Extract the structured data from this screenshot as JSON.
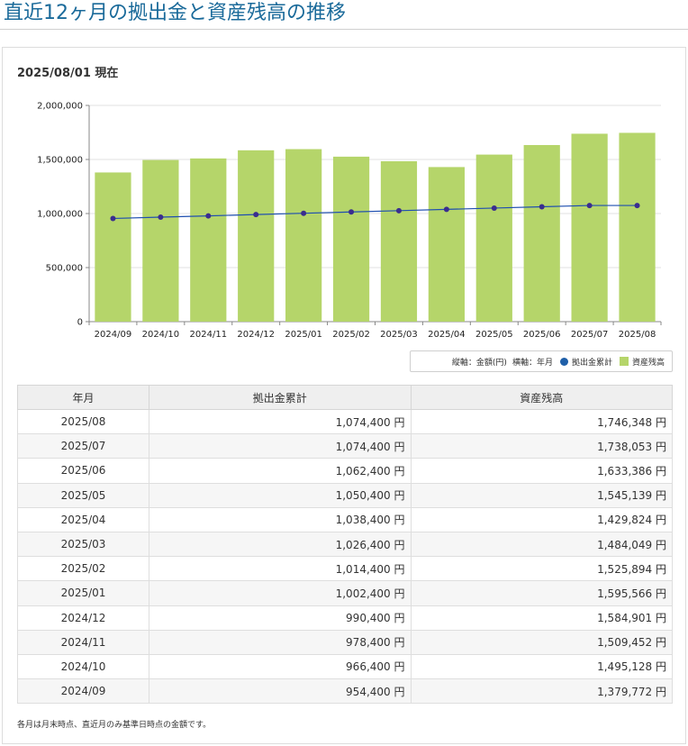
{
  "page": {
    "title": "直近12ヶ月の拠出金と資産残高の推移",
    "as_of": "2025/08/01 現在",
    "footnote": "各月は月末時点、直近月のみ基準日時点の金額です。"
  },
  "legend": {
    "axis_note_y": "縦軸：金額(円)",
    "axis_note_x": "横軸：年月",
    "contrib_label": "拠出金累計",
    "assets_label": "資産残高"
  },
  "colors": {
    "bar": "#b5d56a",
    "line": "#1f4fb0",
    "marker": "#3a2d8f",
    "title": "#1a6a9a"
  },
  "chart_data": {
    "type": "bar",
    "categories": [
      "2024/09",
      "2024/10",
      "2024/11",
      "2024/12",
      "2025/01",
      "2025/02",
      "2025/03",
      "2025/04",
      "2025/05",
      "2025/06",
      "2025/07",
      "2025/08"
    ],
    "series": [
      {
        "name": "資産残高",
        "type": "bar",
        "values": [
          1379772,
          1495128,
          1509452,
          1584901,
          1595566,
          1525894,
          1484049,
          1429824,
          1545139,
          1633386,
          1738053,
          1746348
        ]
      },
      {
        "name": "拠出金累計",
        "type": "line",
        "values": [
          954400,
          966400,
          978400,
          990400,
          1002400,
          1014400,
          1026400,
          1038400,
          1050400,
          1062400,
          1074400,
          1074400
        ]
      }
    ],
    "ylim": [
      0,
      2000000
    ],
    "yticks": [
      0,
      500000,
      1000000,
      1500000,
      2000000
    ],
    "ytick_labels": [
      "0",
      "500,000",
      "1,000,000",
      "1,500,000",
      "2,000,000"
    ],
    "grid": true
  },
  "table": {
    "headers": [
      "年月",
      "拠出金累計",
      "資産残高"
    ],
    "rows": [
      {
        "month": "2025/08",
        "contrib": "1,074,400 円",
        "assets": "1,746,348 円"
      },
      {
        "month": "2025/07",
        "contrib": "1,074,400 円",
        "assets": "1,738,053 円"
      },
      {
        "month": "2025/06",
        "contrib": "1,062,400 円",
        "assets": "1,633,386 円"
      },
      {
        "month": "2025/05",
        "contrib": "1,050,400 円",
        "assets": "1,545,139 円"
      },
      {
        "month": "2025/04",
        "contrib": "1,038,400 円",
        "assets": "1,429,824 円"
      },
      {
        "month": "2025/03",
        "contrib": "1,026,400 円",
        "assets": "1,484,049 円"
      },
      {
        "month": "2025/02",
        "contrib": "1,014,400 円",
        "assets": "1,525,894 円"
      },
      {
        "month": "2025/01",
        "contrib": "1,002,400 円",
        "assets": "1,595,566 円"
      },
      {
        "month": "2024/12",
        "contrib": "990,400 円",
        "assets": "1,584,901 円"
      },
      {
        "month": "2024/11",
        "contrib": "978,400 円",
        "assets": "1,509,452 円"
      },
      {
        "month": "2024/10",
        "contrib": "966,400 円",
        "assets": "1,495,128 円"
      },
      {
        "month": "2024/09",
        "contrib": "954,400 円",
        "assets": "1,379,772 円"
      }
    ]
  }
}
